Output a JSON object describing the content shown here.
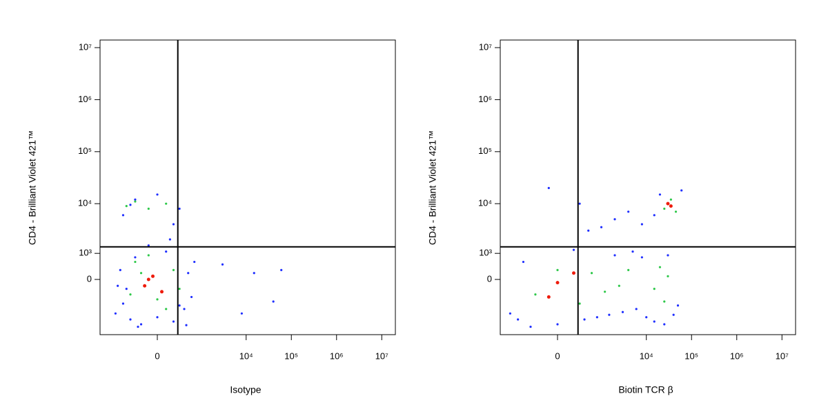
{
  "chart_data": [
    {
      "type": "scatter",
      "xlabel": "Isotype",
      "ylabel": "CD4 - Brilliant Violet 421™",
      "xscale": "biexponential",
      "yscale": "biexponential",
      "xlim": [
        -2000,
        20000000
      ],
      "ylim": [
        -4000,
        14000000
      ],
      "xticks": [
        0,
        {
          "value": 10000,
          "label": "10⁴"
        },
        {
          "value": 100000,
          "label": "10⁵"
        },
        {
          "value": 1000000,
          "label": "10⁶"
        },
        {
          "value": 10000000,
          "label": "10⁷"
        }
      ],
      "yticks": [
        0,
        {
          "value": 1000,
          "label": "10³"
        },
        {
          "value": 10000,
          "label": "10⁴"
        },
        {
          "value": 100000,
          "label": "10⁵"
        },
        {
          "value": 1000000,
          "label": "10⁶"
        },
        {
          "value": 10000000,
          "label": "10⁷"
        }
      ],
      "gate": {
        "x": 270,
        "y": 1400
      },
      "series": [
        {
          "color": "#1f2fff",
          "x": [
            -900,
            -600,
            -400,
            -200,
            0,
            200,
            400,
            600,
            -700,
            -300,
            100,
            500,
            -500,
            -100,
            300,
            -800,
            700,
            -250,
            150,
            450,
            -600,
            -300,
            0,
            300,
            -400,
            200,
            3000,
            8000,
            40000,
            60000,
            15000
          ],
          "y": [
            -1500,
            -900,
            -2000,
            -2500,
            -1800,
            -2200,
            -1200,
            -600,
            300,
            800,
            1100,
            200,
            -300,
            1500,
            -1000,
            -200,
            600,
            -2800,
            2000,
            -2600,
            6000,
            12000,
            15000,
            8000,
            9500,
            4000,
            500,
            -1500,
            -800,
            300,
            200
          ]
        },
        {
          "color": "#2ec84a",
          "x": [
            -400,
            -200,
            0,
            200,
            -300,
            100,
            -100,
            300,
            -500,
            -300,
            -100,
            100
          ],
          "y": [
            -500,
            200,
            -700,
            300,
            600,
            -1200,
            900,
            -300,
            9000,
            11000,
            8000,
            10000
          ]
        },
        {
          "color": "#ee1c0c",
          "x": [
            -150,
            -50,
            50,
            -100
          ],
          "y": [
            -200,
            100,
            -400,
            0
          ]
        }
      ]
    },
    {
      "type": "scatter",
      "xlabel": "Biotin TCR β",
      "ylabel": "CD4 - Brilliant Violet 421™",
      "xscale": "biexponential",
      "yscale": "biexponential",
      "xlim": [
        -2000,
        20000000
      ],
      "ylim": [
        -4000,
        14000000
      ],
      "xticks": [
        0,
        {
          "value": 10000,
          "label": "10⁴"
        },
        {
          "value": 100000,
          "label": "10⁵"
        },
        {
          "value": 1000000,
          "label": "10⁶"
        },
        {
          "value": 10000000,
          "label": "10⁷"
        }
      ],
      "yticks": [
        0,
        {
          "value": 1000,
          "label": "10³"
        },
        {
          "value": 10000,
          "label": "10⁴"
        },
        {
          "value": 100000,
          "label": "10⁵"
        },
        {
          "value": 1000000,
          "label": "10⁶"
        },
        {
          "value": 10000000,
          "label": "10⁷"
        }
      ],
      "gate": {
        "x": 270,
        "y": 1400
      },
      "series": [
        {
          "color": "#1f2fff",
          "x": [
            -1200,
            -800,
            -400,
            0,
            400,
            800,
            1500,
            3000,
            6000,
            10000,
            15000,
            25000,
            40000,
            50000,
            -600,
            200,
            2000,
            5000,
            8000,
            30000,
            500,
            2000,
            4000,
            8000,
            15000,
            20000,
            60000,
            -100,
            300,
            1000
          ],
          "y": [
            -1500,
            -2000,
            -2800,
            -2500,
            -2000,
            -1800,
            -1600,
            -1400,
            -1200,
            -1800,
            -2200,
            -2500,
            -1600,
            -1000,
            600,
            1200,
            900,
            1100,
            800,
            900,
            3000,
            5000,
            7000,
            4000,
            6000,
            15000,
            18000,
            20000,
            10000,
            3500
          ]
        },
        {
          "color": "#2ec84a",
          "x": [
            -300,
            0,
            300,
            600,
            1200,
            2500,
            4000,
            15000,
            20000,
            25000,
            30000,
            25000,
            35000,
            45000
          ],
          "y": [
            -500,
            300,
            -900,
            200,
            -400,
            -200,
            300,
            -300,
            400,
            -800,
            100,
            8000,
            12000,
            7000
          ]
        },
        {
          "color": "#ee1c0c",
          "x": [
            0,
            200,
            -100,
            35000,
            30000
          ],
          "y": [
            -100,
            200,
            -600,
            9000,
            10000
          ]
        }
      ]
    }
  ]
}
